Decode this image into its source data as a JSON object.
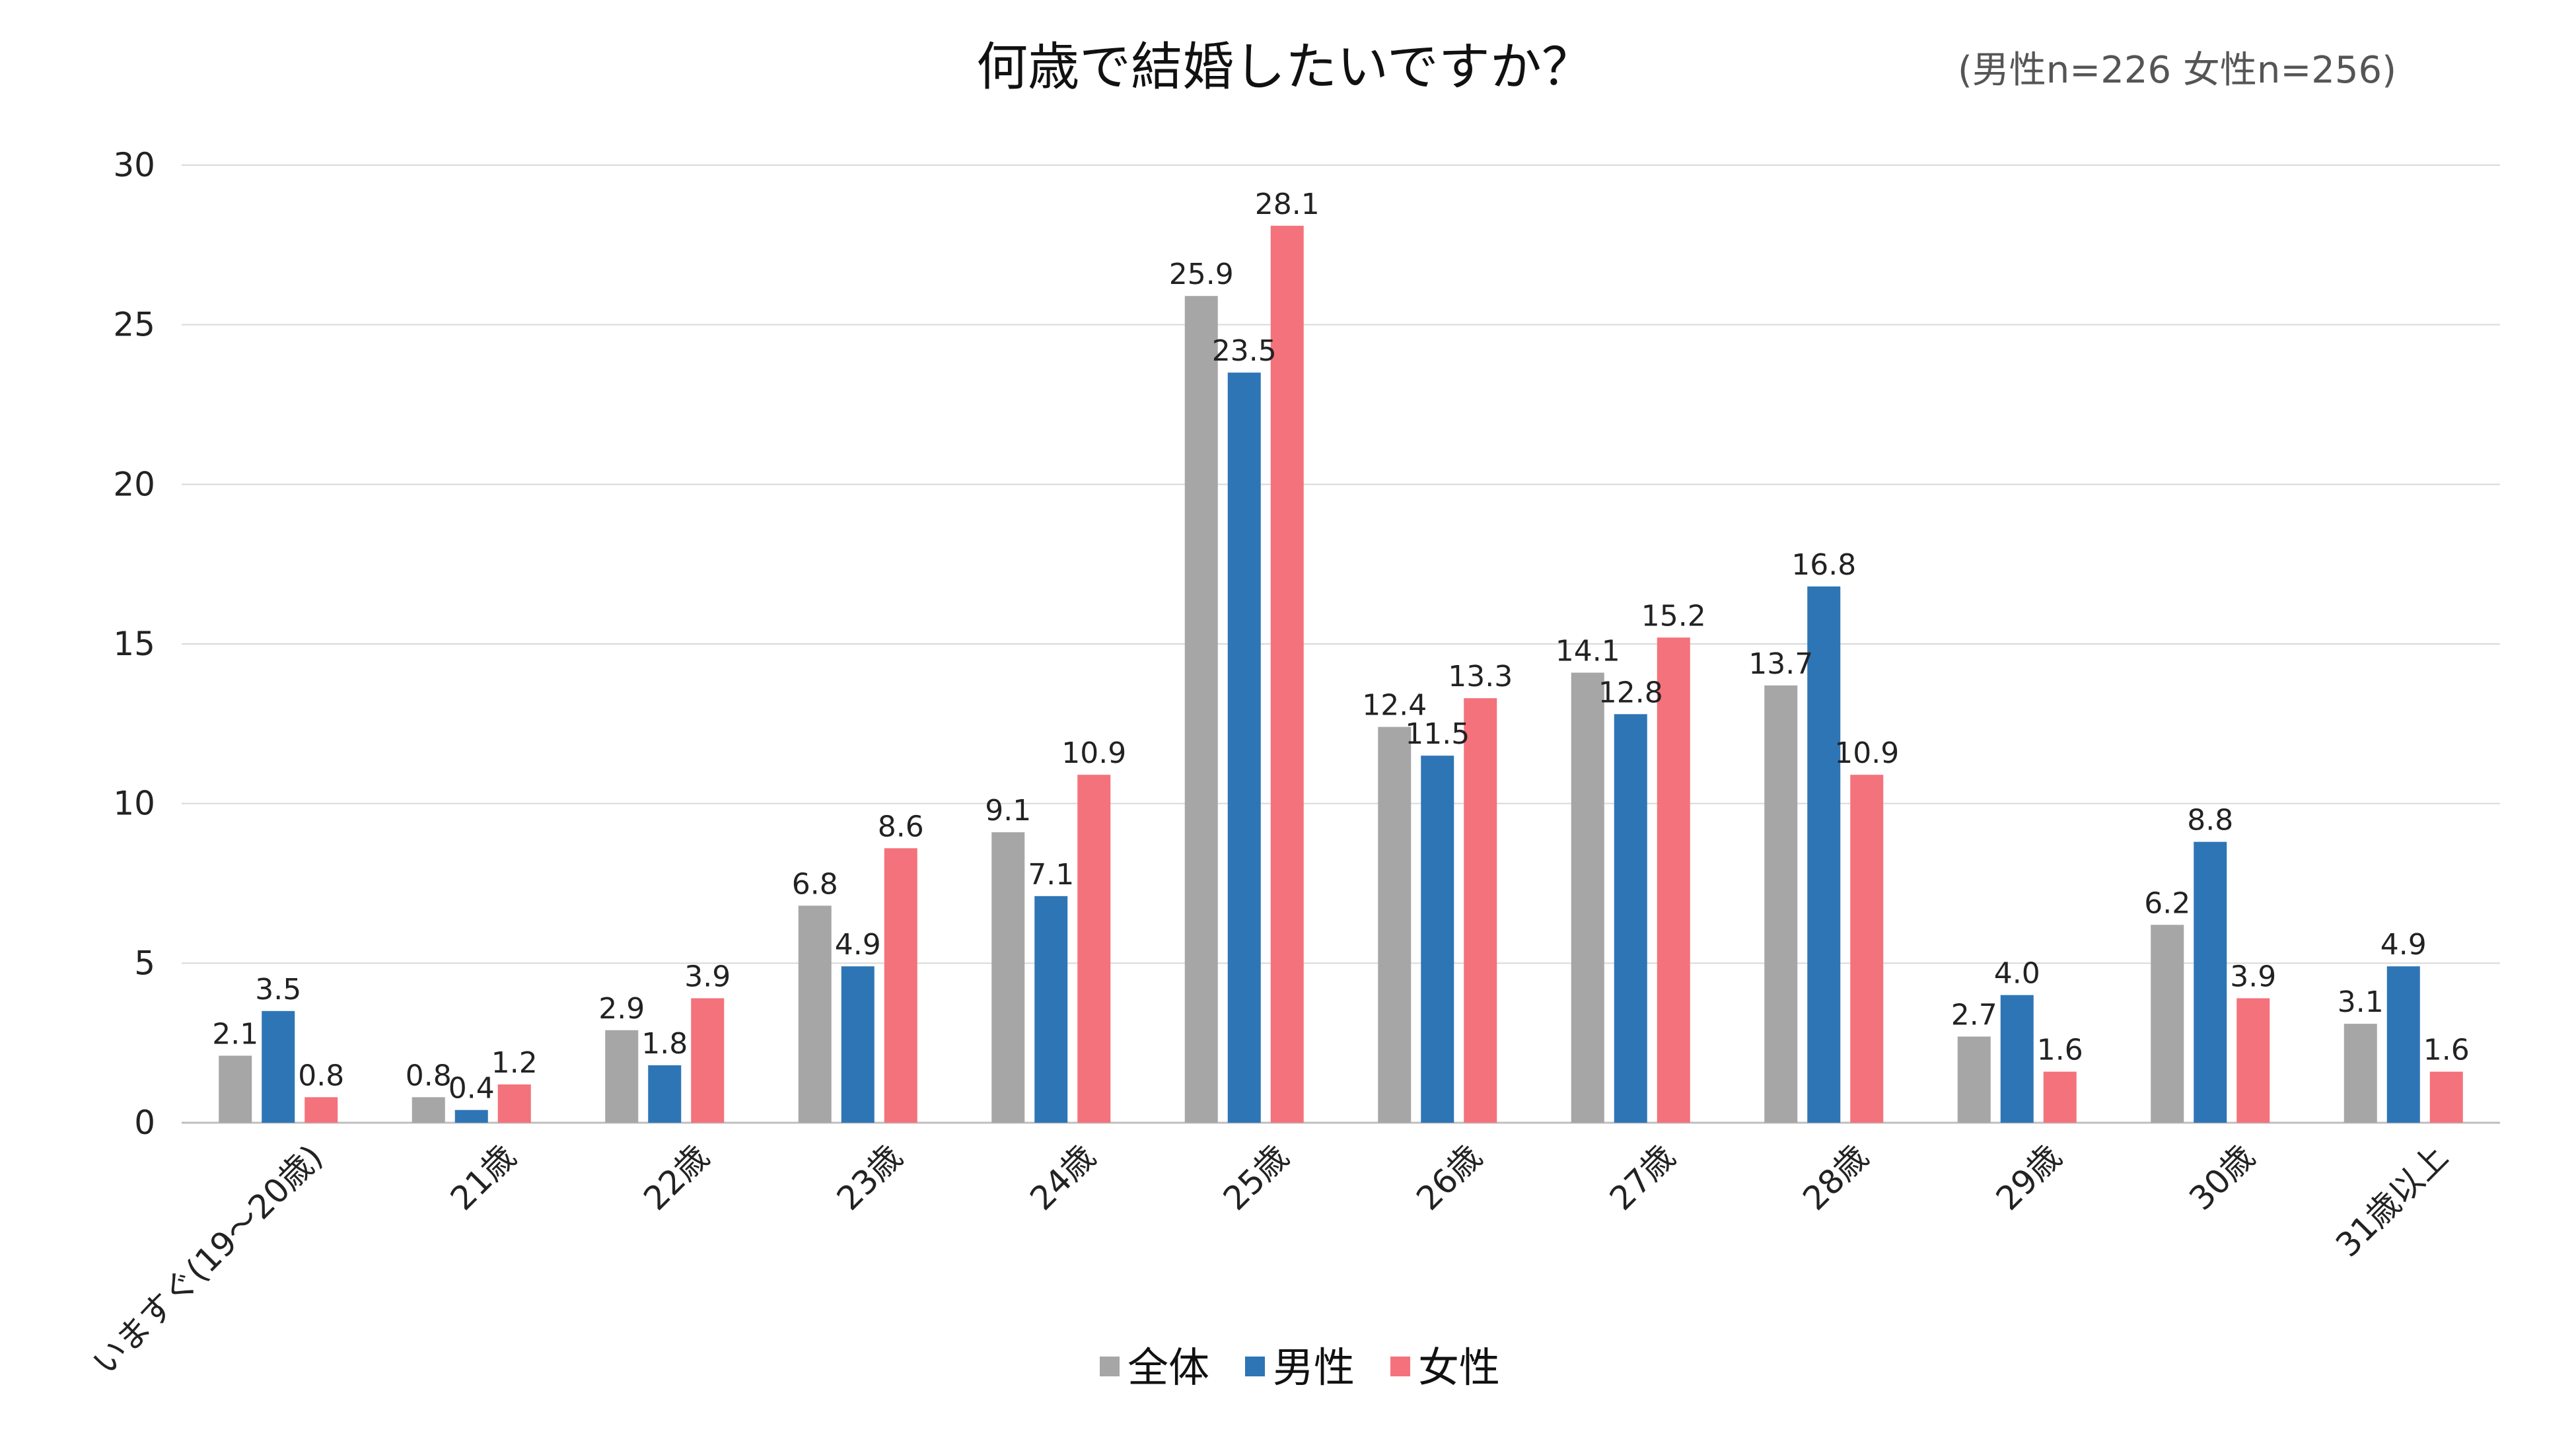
{
  "title": "何歳で結婚したいですか？",
  "subtitle": "(男性n=226 女性n=256)",
  "chart_data": {
    "type": "bar",
    "title": "何歳で結婚したいですか？",
    "subtitle": "(男性n=226 女性n=256)",
    "categories": [
      "いますぐ(19～20歳)",
      "21歳",
      "22歳",
      "23歳",
      "24歳",
      "25歳",
      "26歳",
      "27歳",
      "28歳",
      "29歳",
      "30歳",
      "31歳以上"
    ],
    "series": [
      {
        "name": "全体",
        "color": "#a6a6a6",
        "values": [
          2.1,
          0.8,
          2.9,
          6.8,
          9.1,
          25.9,
          12.4,
          14.1,
          13.7,
          2.7,
          6.2,
          3.1
        ],
        "labels": [
          "2.1",
          "0.8",
          "2.9",
          "6.8",
          "9.1",
          "25.9",
          "12.4",
          "14.1",
          "13.7",
          "2.7",
          "6.2",
          "3.1"
        ]
      },
      {
        "name": "男性",
        "color": "#2e75b6",
        "values": [
          3.5,
          0.4,
          1.8,
          4.9,
          7.1,
          23.5,
          11.5,
          12.8,
          16.8,
          4.0,
          8.8,
          4.9
        ],
        "labels": [
          "3.5",
          "0.4",
          "1.8",
          "4.9",
          "7.1",
          "23.5",
          "11.5",
          "12.8",
          "16.8",
          "4.0",
          "8.8",
          "4.9"
        ]
      },
      {
        "name": "女性",
        "color": "#f4727b",
        "values": [
          0.8,
          1.2,
          3.9,
          8.6,
          10.9,
          28.1,
          13.3,
          15.2,
          10.9,
          1.6,
          3.9,
          1.6
        ],
        "labels": [
          "0.8",
          "1.2",
          "3.9",
          "8.6",
          "10.9",
          "28.1",
          "13.3",
          "15.2",
          "10.9",
          "1.6",
          "3.9",
          "1.6"
        ]
      }
    ],
    "ylim": [
      0,
      30
    ],
    "yticks": [
      "0",
      "5",
      "10",
      "15",
      "20",
      "25",
      "30"
    ],
    "xlabel": "",
    "ylabel": "",
    "grid": true,
    "legend": "bottom"
  }
}
